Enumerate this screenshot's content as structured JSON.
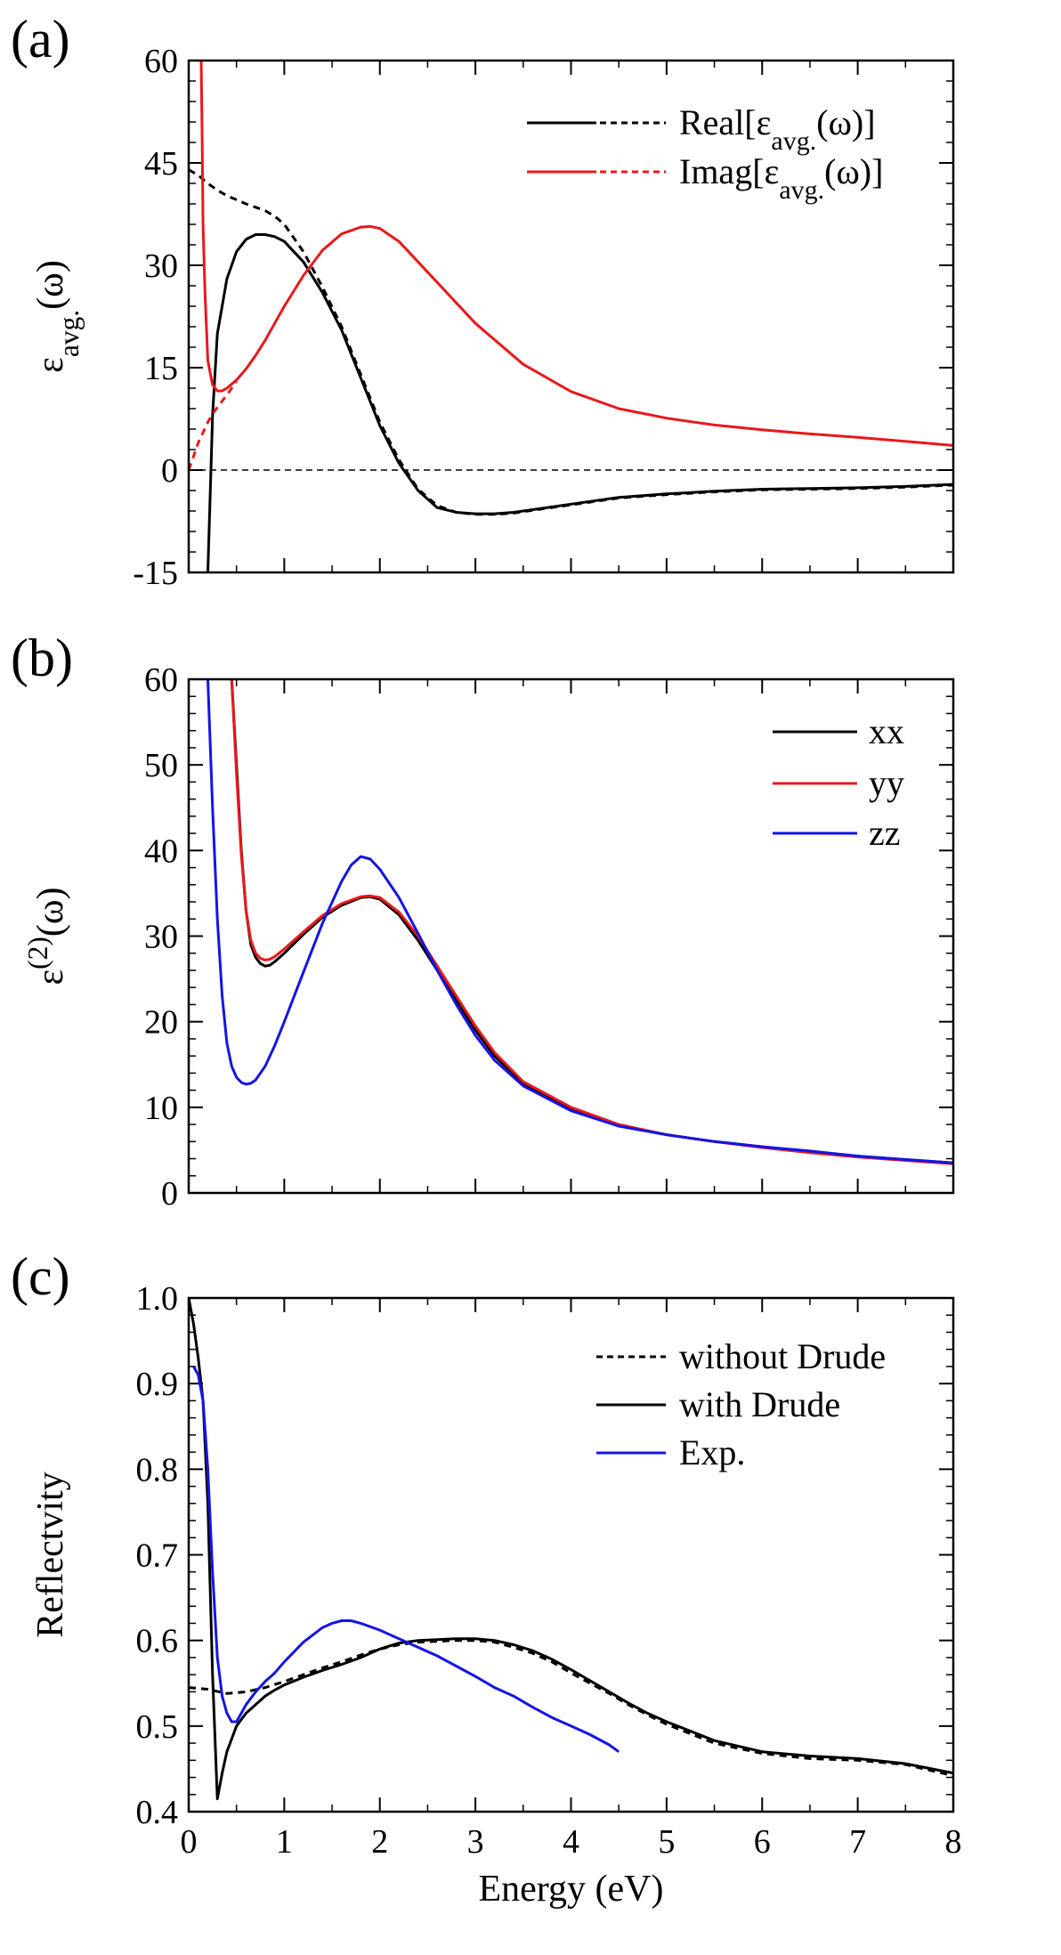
{
  "chart_data": [
    {
      "panel_label": "(a)",
      "type": "line",
      "ylabel": {
        "base": "ε",
        "sub": "avg.",
        "suffix": "(ω)"
      },
      "xlabel": "",
      "xlim": [
        0,
        8
      ],
      "ylim": [
        -15,
        60
      ],
      "xticks": [
        0,
        1,
        2,
        3,
        4,
        5,
        6,
        7,
        8
      ],
      "yticks": [
        "60",
        "45",
        "30",
        "15",
        "0",
        "-15"
      ],
      "x_tick_labels_shown": false,
      "zero_line": true,
      "legend_position": "top-right",
      "legend": [
        {
          "text": "Real[ε",
          "sub": "avg.",
          "tail": "(ω)]",
          "colors": [
            "#000000",
            "#000000"
          ]
        },
        {
          "text": "Imag[ε",
          "sub": "avg.",
          "tail": "(ω)]",
          "colors": [
            "#e8191b",
            "#e8191b"
          ]
        }
      ],
      "series": [
        {
          "key": "real_solid",
          "color": "#000000",
          "dash": false,
          "x": [
            0.2,
            0.22,
            0.25,
            0.3,
            0.4,
            0.5,
            0.6,
            0.7,
            0.8,
            0.9,
            1.0,
            1.2,
            1.4,
            1.6,
            1.8,
            2.0,
            2.2,
            2.4,
            2.6,
            2.8,
            3.0,
            3.2,
            3.4,
            3.6,
            4.0,
            4.5,
            5.0,
            5.5,
            6.0,
            6.5,
            7.0,
            7.5,
            8.0
          ],
          "y": [
            -15,
            -6,
            8,
            20,
            28,
            32,
            33.8,
            34.5,
            34.5,
            34.2,
            33.5,
            30.5,
            26,
            20.5,
            13.5,
            6.5,
            1,
            -3,
            -5.5,
            -6.2,
            -6.4,
            -6.4,
            -6.2,
            -5.8,
            -5,
            -4,
            -3.5,
            -3.1,
            -2.8,
            -2.7,
            -2.6,
            -2.4,
            -2.1
          ]
        },
        {
          "key": "real_dotted",
          "color": "#000000",
          "dash": true,
          "x": [
            0.0,
            0.1,
            0.2,
            0.3,
            0.4,
            0.5,
            0.6,
            0.7,
            0.8,
            0.9,
            1.0,
            1.2,
            1.4,
            1.6,
            1.8,
            2.0,
            2.2,
            2.4,
            2.6,
            2.8,
            3.0,
            3.2,
            3.4,
            3.6,
            4.0,
            4.5,
            5.0,
            5.5,
            6.0,
            6.5,
            7.0,
            7.5,
            8.0
          ],
          "y": [
            44,
            43.2,
            42,
            41,
            40.2,
            39.6,
            39,
            38.5,
            38,
            37.2,
            36,
            32,
            26.8,
            21,
            14,
            7,
            1.5,
            -2.8,
            -5.2,
            -6.2,
            -6.5,
            -6.5,
            -6.3,
            -5.9,
            -5.1,
            -4.1,
            -3.6,
            -3.2,
            -2.9,
            -2.8,
            -2.7,
            -2.5,
            -2.2
          ]
        },
        {
          "key": "imag_solid",
          "color": "#e8191b",
          "dash": false,
          "x": [
            0.13,
            0.14,
            0.15,
            0.17,
            0.2,
            0.25,
            0.3,
            0.35,
            0.4,
            0.5,
            0.6,
            0.7,
            0.8,
            0.9,
            1.0,
            1.2,
            1.4,
            1.6,
            1.8,
            1.9,
            2.0,
            2.2,
            2.4,
            2.6,
            2.8,
            3.0,
            3.5,
            4.0,
            4.5,
            5.0,
            5.5,
            6.0,
            6.5,
            7.0,
            7.5,
            8.0
          ],
          "y": [
            60,
            50,
            36,
            26,
            16,
            12.5,
            11.6,
            11.6,
            12,
            13.2,
            14.8,
            16.8,
            19,
            21.5,
            24,
            28.5,
            32.2,
            34.6,
            35.6,
            35.7,
            35.4,
            33.5,
            30.5,
            27.5,
            24.5,
            21.5,
            15.5,
            11.5,
            9,
            7.6,
            6.6,
            5.9,
            5.3,
            4.8,
            4.2,
            3.6
          ]
        },
        {
          "key": "imag_dotted",
          "color": "#e8191b",
          "dash": true,
          "x": [
            0.0,
            0.05,
            0.1,
            0.15,
            0.2,
            0.25,
            0.3,
            0.4,
            0.5
          ],
          "y": [
            0,
            2,
            4,
            5.5,
            7,
            8.2,
            9.2,
            11,
            13
          ]
        }
      ]
    },
    {
      "panel_label": "(b)",
      "type": "line",
      "ylabel": {
        "base": "ε",
        "sup": "(2)",
        "suffix": "(ω)"
      },
      "xlabel": "",
      "xlim": [
        0,
        8
      ],
      "ylim": [
        0,
        60
      ],
      "xticks": [
        0,
        1,
        2,
        3,
        4,
        5,
        6,
        7,
        8
      ],
      "yticks": [
        "60",
        "50",
        "40",
        "30",
        "20",
        "10",
        "0"
      ],
      "x_tick_labels_shown": false,
      "zero_line": false,
      "legend_position": "top-right",
      "legend": [
        {
          "text": "xx",
          "colors": [
            "#000000"
          ]
        },
        {
          "text": "yy",
          "colors": [
            "#e8191b"
          ]
        },
        {
          "text": "zz",
          "colors": [
            "#1414e6"
          ]
        }
      ],
      "series": [
        {
          "key": "xx",
          "color": "#000000",
          "dash": false,
          "x": [
            0.45,
            0.5,
            0.55,
            0.6,
            0.65,
            0.7,
            0.75,
            0.8,
            0.85,
            0.9,
            1.0,
            1.2,
            1.4,
            1.6,
            1.8,
            1.9,
            2.0,
            2.2,
            2.4,
            2.6,
            2.8,
            3.0,
            3.2,
            3.5,
            4.0,
            4.5,
            5.0,
            5.5,
            6.0,
            6.5,
            7.0,
            7.5,
            8.0
          ],
          "y": [
            60,
            50,
            40,
            33,
            29,
            27.5,
            26.8,
            26.5,
            26.6,
            27,
            28,
            30.2,
            32.2,
            33.6,
            34.5,
            34.6,
            34.3,
            32.5,
            29.5,
            26,
            22.5,
            19,
            16,
            12.8,
            9.8,
            7.9,
            6.8,
            6.0,
            5.4,
            4.8,
            4.3,
            3.9,
            3.5
          ]
        },
        {
          "key": "yy",
          "color": "#e8191b",
          "dash": false,
          "x": [
            0.45,
            0.5,
            0.55,
            0.6,
            0.65,
            0.7,
            0.75,
            0.8,
            0.85,
            0.9,
            1.0,
            1.2,
            1.4,
            1.6,
            1.8,
            1.9,
            2.0,
            2.2,
            2.4,
            2.6,
            2.8,
            3.0,
            3.2,
            3.5,
            4.0,
            4.5,
            5.0,
            5.5,
            6.0,
            6.5,
            7.0,
            7.5,
            8.0
          ],
          "y": [
            60,
            49,
            39.5,
            33,
            29.5,
            28,
            27.4,
            27.2,
            27.3,
            27.6,
            28.5,
            30.5,
            32.4,
            33.8,
            34.6,
            34.7,
            34.5,
            32.8,
            30,
            26.5,
            23,
            19.5,
            16.4,
            13,
            10,
            8.0,
            6.8,
            6.0,
            5.3,
            4.7,
            4.2,
            3.8,
            3.4
          ]
        },
        {
          "key": "zz",
          "color": "#1414e6",
          "dash": false,
          "x": [
            0.2,
            0.25,
            0.3,
            0.35,
            0.4,
            0.45,
            0.5,
            0.55,
            0.6,
            0.65,
            0.7,
            0.8,
            0.9,
            1.0,
            1.2,
            1.4,
            1.6,
            1.7,
            1.8,
            1.9,
            2.0,
            2.2,
            2.4,
            2.6,
            2.8,
            3.0,
            3.2,
            3.5,
            4.0,
            4.5,
            5.0,
            5.5,
            6.0,
            6.5,
            7.0,
            7.5,
            8.0
          ],
          "y": [
            60,
            45,
            32,
            23,
            17.5,
            14.8,
            13.5,
            12.9,
            12.7,
            12.8,
            13.2,
            14.8,
            17.2,
            20,
            25.8,
            31.5,
            36.4,
            38.3,
            39.3,
            39,
            37.8,
            34.5,
            30.3,
            26,
            22,
            18.4,
            15.5,
            12.5,
            9.6,
            7.8,
            6.8,
            6.0,
            5.4,
            4.9,
            4.3,
            3.9,
            3.5
          ]
        }
      ]
    },
    {
      "panel_label": "(c)",
      "type": "line",
      "ylabel": {
        "base": "Reflectvity"
      },
      "xlabel": "Energy (eV)",
      "xlim": [
        0,
        8
      ],
      "ylim": [
        0.4,
        1.0
      ],
      "xticks": [
        0,
        1,
        2,
        3,
        4,
        5,
        6,
        7,
        8
      ],
      "xtick_labels": [
        "0",
        "1",
        "2",
        "3",
        "4",
        "5",
        "6",
        "7",
        "8"
      ],
      "yticks": [
        "1.0",
        "0.9",
        "0.8",
        "0.7",
        "0.6",
        "0.5",
        "0.4"
      ],
      "x_tick_labels_shown": true,
      "zero_line": false,
      "legend_position": "top-right",
      "legend": [
        {
          "text": "without Drude",
          "colors": [
            "#000000"
          ],
          "dash": true
        },
        {
          "text": "with Drude",
          "colors": [
            "#000000"
          ]
        },
        {
          "text": "Exp.",
          "colors": [
            "#1414e6"
          ]
        }
      ],
      "series": [
        {
          "key": "without_drude",
          "color": "#000000",
          "dash": true,
          "x": [
            0.0,
            0.2,
            0.4,
            0.6,
            0.8,
            1.0,
            1.2,
            1.4,
            1.6,
            1.8,
            2.0,
            2.2,
            2.4,
            2.6,
            2.8,
            3.0,
            3.2,
            3.4,
            3.6,
            3.8,
            4.0,
            4.2,
            4.4,
            4.6,
            4.8,
            5.0,
            5.5,
            6.0,
            6.5,
            7.0,
            7.5,
            8.0
          ],
          "y": [
            0.545,
            0.543,
            0.538,
            0.54,
            0.545,
            0.552,
            0.56,
            0.568,
            0.575,
            0.583,
            0.59,
            0.595,
            0.598,
            0.599,
            0.6,
            0.6,
            0.598,
            0.592,
            0.585,
            0.575,
            0.562,
            0.55,
            0.538,
            0.525,
            0.513,
            0.502,
            0.48,
            0.468,
            0.462,
            0.46,
            0.455,
            0.442
          ]
        },
        {
          "key": "with_drude",
          "color": "#000000",
          "dash": false,
          "x": [
            0.0,
            0.05,
            0.1,
            0.15,
            0.2,
            0.25,
            0.3,
            0.35,
            0.4,
            0.5,
            0.6,
            0.7,
            0.8,
            0.9,
            1.0,
            1.2,
            1.4,
            1.6,
            1.8,
            2.0,
            2.2,
            2.4,
            2.6,
            2.8,
            3.0,
            3.2,
            3.4,
            3.6,
            3.8,
            4.0,
            4.2,
            4.4,
            4.6,
            4.8,
            5.0,
            5.5,
            6.0,
            6.5,
            7.0,
            7.5,
            8.0
          ],
          "y": [
            1.0,
            0.97,
            0.93,
            0.88,
            0.76,
            0.56,
            0.415,
            0.445,
            0.47,
            0.5,
            0.515,
            0.525,
            0.535,
            0.542,
            0.548,
            0.557,
            0.565,
            0.572,
            0.58,
            0.59,
            0.597,
            0.6,
            0.601,
            0.602,
            0.602,
            0.6,
            0.595,
            0.588,
            0.578,
            0.566,
            0.553,
            0.54,
            0.527,
            0.515,
            0.505,
            0.483,
            0.47,
            0.465,
            0.462,
            0.456,
            0.445
          ]
        },
        {
          "key": "exp",
          "color": "#1414e6",
          "dash": false,
          "x": [
            0.05,
            0.1,
            0.15,
            0.2,
            0.25,
            0.3,
            0.35,
            0.4,
            0.45,
            0.5,
            0.55,
            0.6,
            0.7,
            0.8,
            0.9,
            1.0,
            1.2,
            1.4,
            1.5,
            1.6,
            1.7,
            1.8,
            2.0,
            2.2,
            2.4,
            2.6,
            2.8,
            3.0,
            3.2,
            3.4,
            3.6,
            3.8,
            4.0,
            4.2,
            4.4,
            4.5
          ],
          "y": [
            0.92,
            0.91,
            0.88,
            0.8,
            0.68,
            0.58,
            0.535,
            0.515,
            0.505,
            0.505,
            0.515,
            0.525,
            0.54,
            0.552,
            0.562,
            0.575,
            0.598,
            0.615,
            0.62,
            0.623,
            0.623,
            0.62,
            0.612,
            0.602,
            0.592,
            0.582,
            0.57,
            0.558,
            0.545,
            0.535,
            0.522,
            0.51,
            0.5,
            0.49,
            0.478,
            0.47
          ]
        }
      ]
    }
  ]
}
